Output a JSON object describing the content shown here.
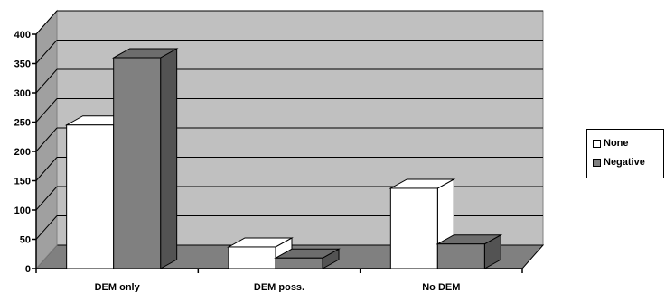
{
  "chart_data": {
    "type": "bar",
    "categories": [
      "DEM only",
      "DEM poss.",
      "No DEM"
    ],
    "series": [
      {
        "name": "None",
        "values": [
          245,
          37,
          137
        ],
        "color": "#ffffff"
      },
      {
        "name": "Negative",
        "values": [
          360,
          18,
          42
        ],
        "color": "#808080"
      }
    ],
    "ylim": [
      0,
      400
    ],
    "yticks": [
      "0",
      "50",
      "100",
      "150",
      "200",
      "250",
      "300",
      "350",
      "400"
    ],
    "grid": true,
    "legend": "right",
    "colors": {
      "wall": "#c0c0c0",
      "floor": "#808080",
      "edge": "#000000"
    }
  }
}
